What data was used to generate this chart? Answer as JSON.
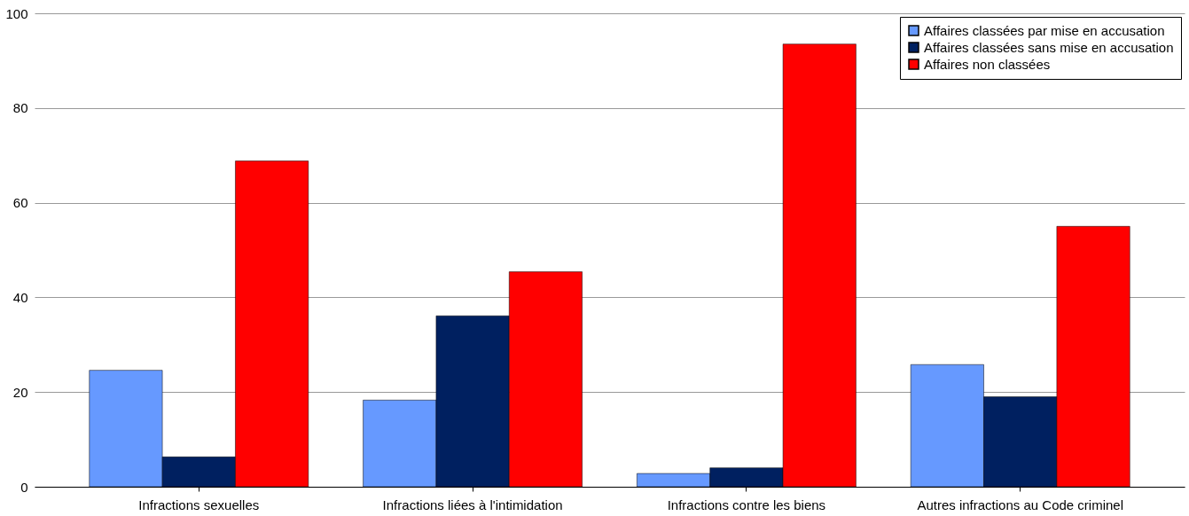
{
  "chart_data": {
    "type": "bar",
    "categories": [
      "Infractions sexuelles",
      "Infractions liées à l'intimidation",
      "Infractions contre les biens",
      "Autres infractions au Code criminel"
    ],
    "series": [
      {
        "name": "Affaires classées par mise en accusation",
        "color": "#6699ff",
        "values": [
          24.6,
          18.3,
          2.8,
          25.8
        ]
      },
      {
        "name": "Affaires classées sans mise en accusation",
        "color": "#002060",
        "values": [
          6.3,
          36.1,
          4.0,
          19.0
        ]
      },
      {
        "name": "Affaires non classées",
        "color": "#ff0000",
        "values": [
          68.8,
          45.4,
          93.5,
          55.0
        ]
      }
    ],
    "ylim": [
      0,
      100
    ],
    "yticks": [
      0,
      20,
      40,
      60,
      80,
      100
    ],
    "grid": "y",
    "legend": "top right"
  }
}
